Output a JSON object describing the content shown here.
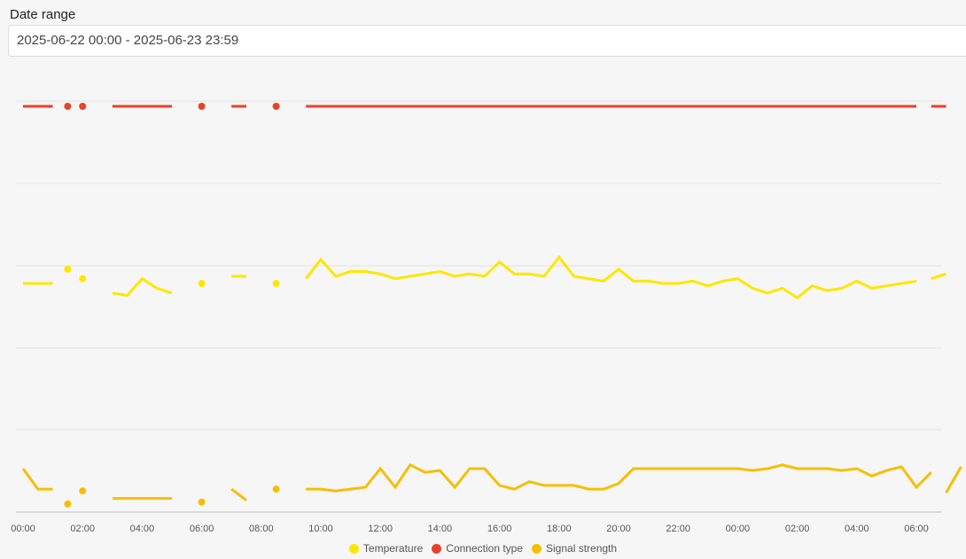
{
  "filter": {
    "label": "Date range",
    "value": "2025-06-22 00:00 - 2025-06-23 23:59"
  },
  "colors": {
    "temperature": "#ffe600",
    "connection": "#e8422b",
    "signal": "#f5bf00",
    "grid": "#e2e2e2",
    "axis": "#bdbdbd"
  },
  "chart_data": {
    "type": "line",
    "x_unit": "hours since 2025-06-22 00:00",
    "x_ticks": [
      "00:00",
      "02:00",
      "04:00",
      "06:00",
      "08:00",
      "10:00",
      "12:00",
      "14:00",
      "16:00",
      "18:00",
      "20:00",
      "22:00",
      "00:00",
      "02:00",
      "04:00",
      "06:00"
    ],
    "grid": true,
    "legend_position": "bottom",
    "series": [
      {
        "name": "Temperature",
        "key": "temperature",
        "segments": [
          [
            [
              0,
              21.0
            ],
            [
              0.5,
              21.0
            ],
            [
              1,
              21.0
            ]
          ],
          [
            [
              1.5,
              21.6
            ]
          ],
          [
            [
              2,
              21.2
            ]
          ],
          [
            [
              3,
              20.6
            ],
            [
              3.5,
              20.5
            ],
            [
              4,
              21.2
            ],
            [
              4.5,
              20.8
            ],
            [
              5,
              20.6
            ]
          ],
          [
            [
              6,
              21.0
            ]
          ],
          [
            [
              7,
              21.3
            ],
            [
              7.5,
              21.3
            ]
          ],
          [
            [
              8.5,
              21.0
            ]
          ],
          [
            [
              9.5,
              21.2
            ],
            [
              10,
              22.0
            ],
            [
              10.5,
              21.3
            ],
            [
              11,
              21.5
            ],
            [
              11.5,
              21.5
            ],
            [
              12,
              21.4
            ],
            [
              12.5,
              21.2
            ],
            [
              13,
              21.3
            ],
            [
              13.5,
              21.4
            ],
            [
              14,
              21.5
            ],
            [
              14.5,
              21.3
            ],
            [
              15,
              21.4
            ],
            [
              15.5,
              21.3
            ],
            [
              16,
              21.9
            ],
            [
              16.5,
              21.4
            ],
            [
              17,
              21.4
            ],
            [
              17.5,
              21.3
            ],
            [
              18,
              22.1
            ],
            [
              18.5,
              21.3
            ],
            [
              19,
              21.2
            ],
            [
              19.5,
              21.1
            ],
            [
              20,
              21.6
            ],
            [
              20.5,
              21.1
            ],
            [
              21,
              21.1
            ],
            [
              21.5,
              21.0
            ],
            [
              22,
              21.0
            ],
            [
              22.5,
              21.1
            ],
            [
              23,
              20.9
            ],
            [
              23.5,
              21.1
            ],
            [
              24,
              21.2
            ],
            [
              24.5,
              20.8
            ],
            [
              25,
              20.6
            ],
            [
              25.5,
              20.8
            ],
            [
              26,
              20.4
            ],
            [
              26.5,
              20.9
            ],
            [
              27,
              20.7
            ],
            [
              27.5,
              20.8
            ],
            [
              28,
              21.1
            ],
            [
              28.5,
              20.8
            ],
            [
              29,
              20.9
            ],
            [
              29.5,
              21.0
            ],
            [
              30,
              21.1
            ]
          ],
          [
            [
              30.5,
              21.2
            ],
            [
              31,
              21.4
            ]
          ]
        ]
      },
      {
        "name": "Connection type",
        "key": "connection",
        "segments": [
          [
            [
              0,
              1
            ],
            [
              1,
              1
            ]
          ],
          [
            [
              1.5,
              1
            ]
          ],
          [
            [
              2,
              1
            ]
          ],
          [
            [
              3,
              1
            ],
            [
              5,
              1
            ]
          ],
          [
            [
              6,
              1
            ]
          ],
          [
            [
              7,
              1
            ],
            [
              7.5,
              1
            ]
          ],
          [
            [
              8.5,
              1
            ]
          ],
          [
            [
              9.5,
              1
            ],
            [
              30,
              1
            ]
          ],
          [
            [
              30.5,
              1
            ],
            [
              31,
              1
            ]
          ]
        ]
      },
      {
        "name": "Signal strength",
        "key": "signal",
        "segments": [
          [
            [
              0,
              -60
            ],
            [
              0.5,
              -71
            ],
            [
              1,
              -71
            ]
          ],
          [
            [
              1.5,
              -79
            ]
          ],
          [
            [
              2,
              -72
            ]
          ],
          [
            [
              3,
              -76
            ],
            [
              5,
              -76
            ]
          ],
          [
            [
              6,
              -78
            ]
          ],
          [
            [
              7,
              -71
            ],
            [
              7.5,
              -77
            ]
          ],
          [
            [
              8.5,
              -71
            ]
          ],
          [
            [
              9.5,
              -71
            ],
            [
              10,
              -71
            ],
            [
              10.5,
              -72
            ],
            [
              11,
              -71
            ],
            [
              11.5,
              -70
            ],
            [
              12,
              -60
            ],
            [
              12.5,
              -70
            ],
            [
              13,
              -58
            ],
            [
              13.5,
              -62
            ],
            [
              14,
              -61
            ],
            [
              14.5,
              -70
            ],
            [
              15,
              -60
            ],
            [
              15.5,
              -60
            ],
            [
              16,
              -69
            ],
            [
              16.5,
              -71
            ],
            [
              17,
              -67
            ],
            [
              17.5,
              -69
            ],
            [
              18,
              -69
            ],
            [
              18.5,
              -69
            ],
            [
              19,
              -71
            ],
            [
              19.5,
              -71
            ],
            [
              20,
              -68
            ],
            [
              20.5,
              -60
            ],
            [
              21,
              -60
            ],
            [
              21.5,
              -60
            ],
            [
              22,
              -60
            ],
            [
              22.5,
              -60
            ],
            [
              23,
              -60
            ],
            [
              23.5,
              -60
            ],
            [
              24,
              -60
            ],
            [
              24.5,
              -61
            ],
            [
              25,
              -60
            ],
            [
              25.5,
              -58
            ],
            [
              26,
              -60
            ],
            [
              26.5,
              -60
            ],
            [
              27,
              -60
            ],
            [
              27.5,
              -61
            ],
            [
              28,
              -60
            ],
            [
              28.5,
              -64
            ],
            [
              29,
              -61
            ],
            [
              29.5,
              -59
            ],
            [
              30,
              -70
            ],
            [
              30.5,
              -62
            ]
          ],
          [
            [
              31,
              -73
            ],
            [
              31.5,
              -59
            ]
          ]
        ]
      }
    ]
  }
}
